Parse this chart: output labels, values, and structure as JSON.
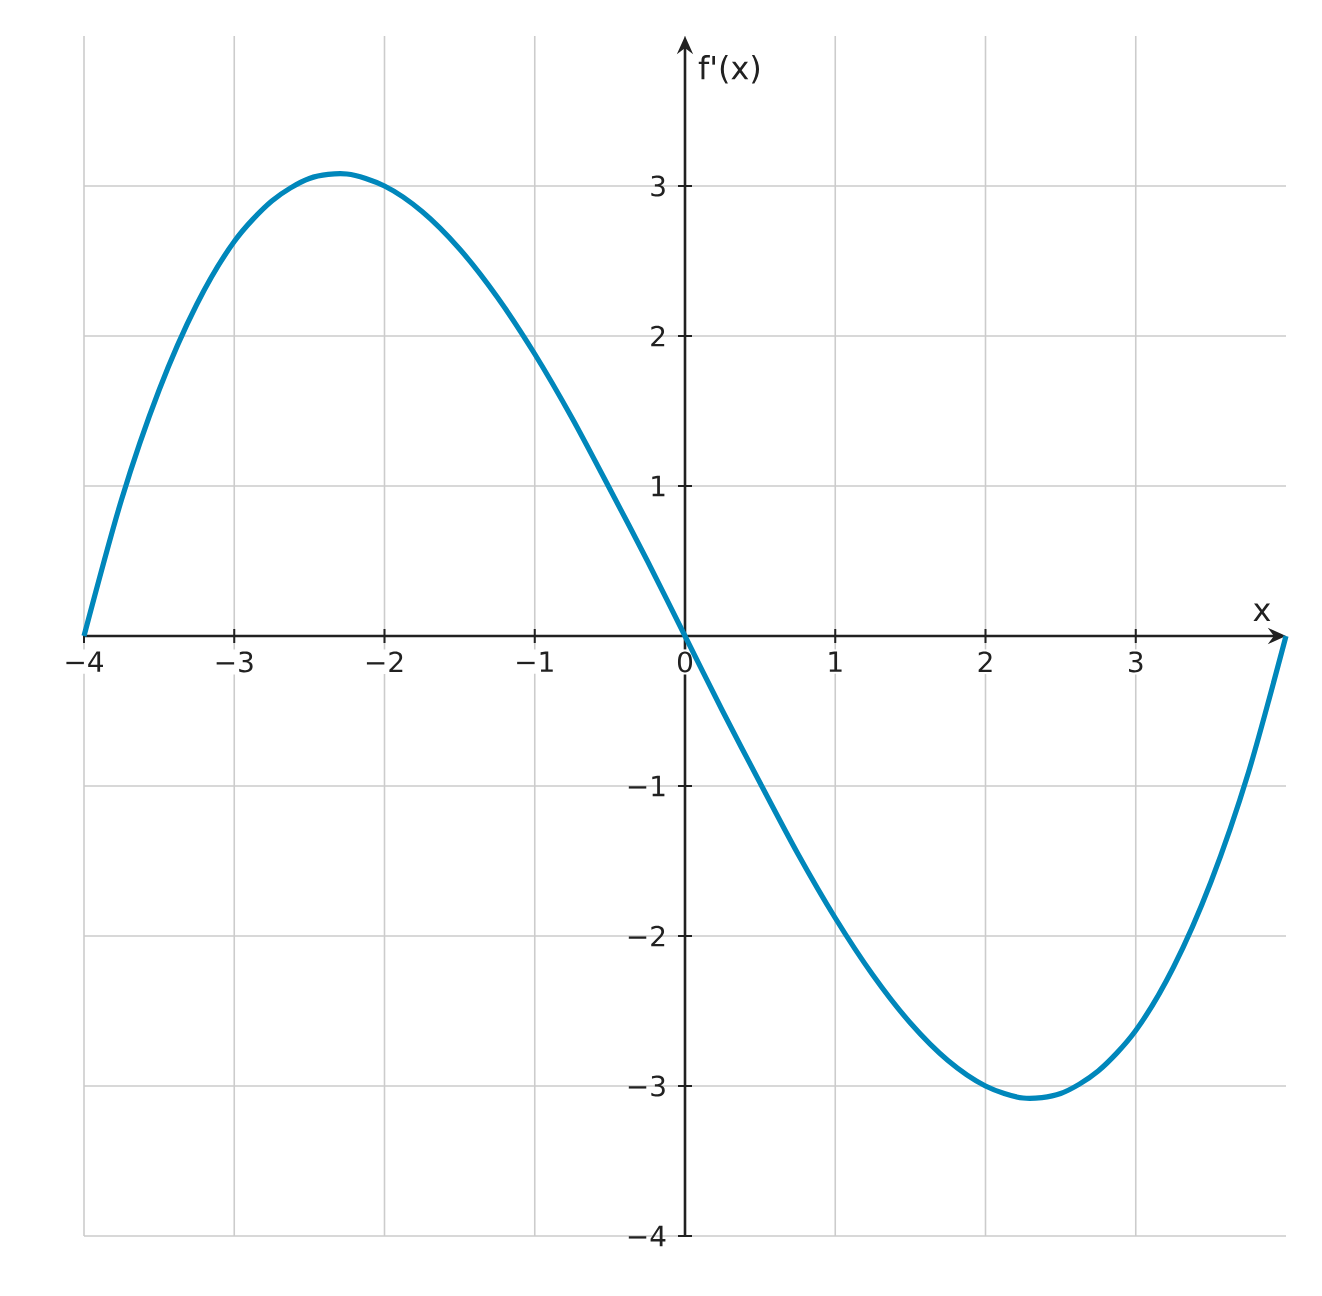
{
  "chart_data": {
    "type": "line",
    "xlabel": "x",
    "ylabel": "f'(x)",
    "x": [
      -4,
      -3.75,
      -3.5,
      -3.25,
      -3,
      -2.75,
      -2.5,
      -2.25,
      -2,
      -1.75,
      -1.5,
      -1.25,
      -1,
      -0.75,
      -0.5,
      -0.25,
      0,
      0.25,
      0.5,
      0.75,
      1,
      1.25,
      1.5,
      1.75,
      2,
      2.25,
      2.5,
      2.75,
      3,
      3.25,
      3.5,
      3.75,
      4
    ],
    "series": [
      {
        "color": "#0087bb",
        "values": [
          0,
          0.91,
          1.64,
          2.21,
          2.63,
          2.9,
          3.05,
          3.08,
          3,
          2.83,
          2.58,
          2.26,
          1.88,
          1.45,
          0.98,
          0.5,
          0,
          -0.5,
          -0.98,
          -1.45,
          -1.88,
          -2.26,
          -2.58,
          -2.83,
          -3,
          -3.08,
          -3.05,
          -2.9,
          -2.63,
          -2.21,
          -1.64,
          -0.91,
          0
        ]
      }
    ],
    "xlim": [
      -4,
      4
    ],
    "ylim": [
      -4,
      4
    ],
    "xticks": [
      {
        "value": -4,
        "label": "−4"
      },
      {
        "value": -3,
        "label": "−3"
      },
      {
        "value": -2,
        "label": "−2"
      },
      {
        "value": -1,
        "label": "−1"
      },
      0,
      1,
      2,
      3
    ],
    "yticks": [
      {
        "value": -4,
        "label": "−4"
      },
      {
        "value": -3,
        "label": "−3"
      },
      {
        "value": -2,
        "label": "−2"
      },
      {
        "value": -1,
        "label": "−1"
      },
      1,
      2,
      3
    ],
    "grid": true,
    "marker": "none",
    "line_style": "solid"
  }
}
